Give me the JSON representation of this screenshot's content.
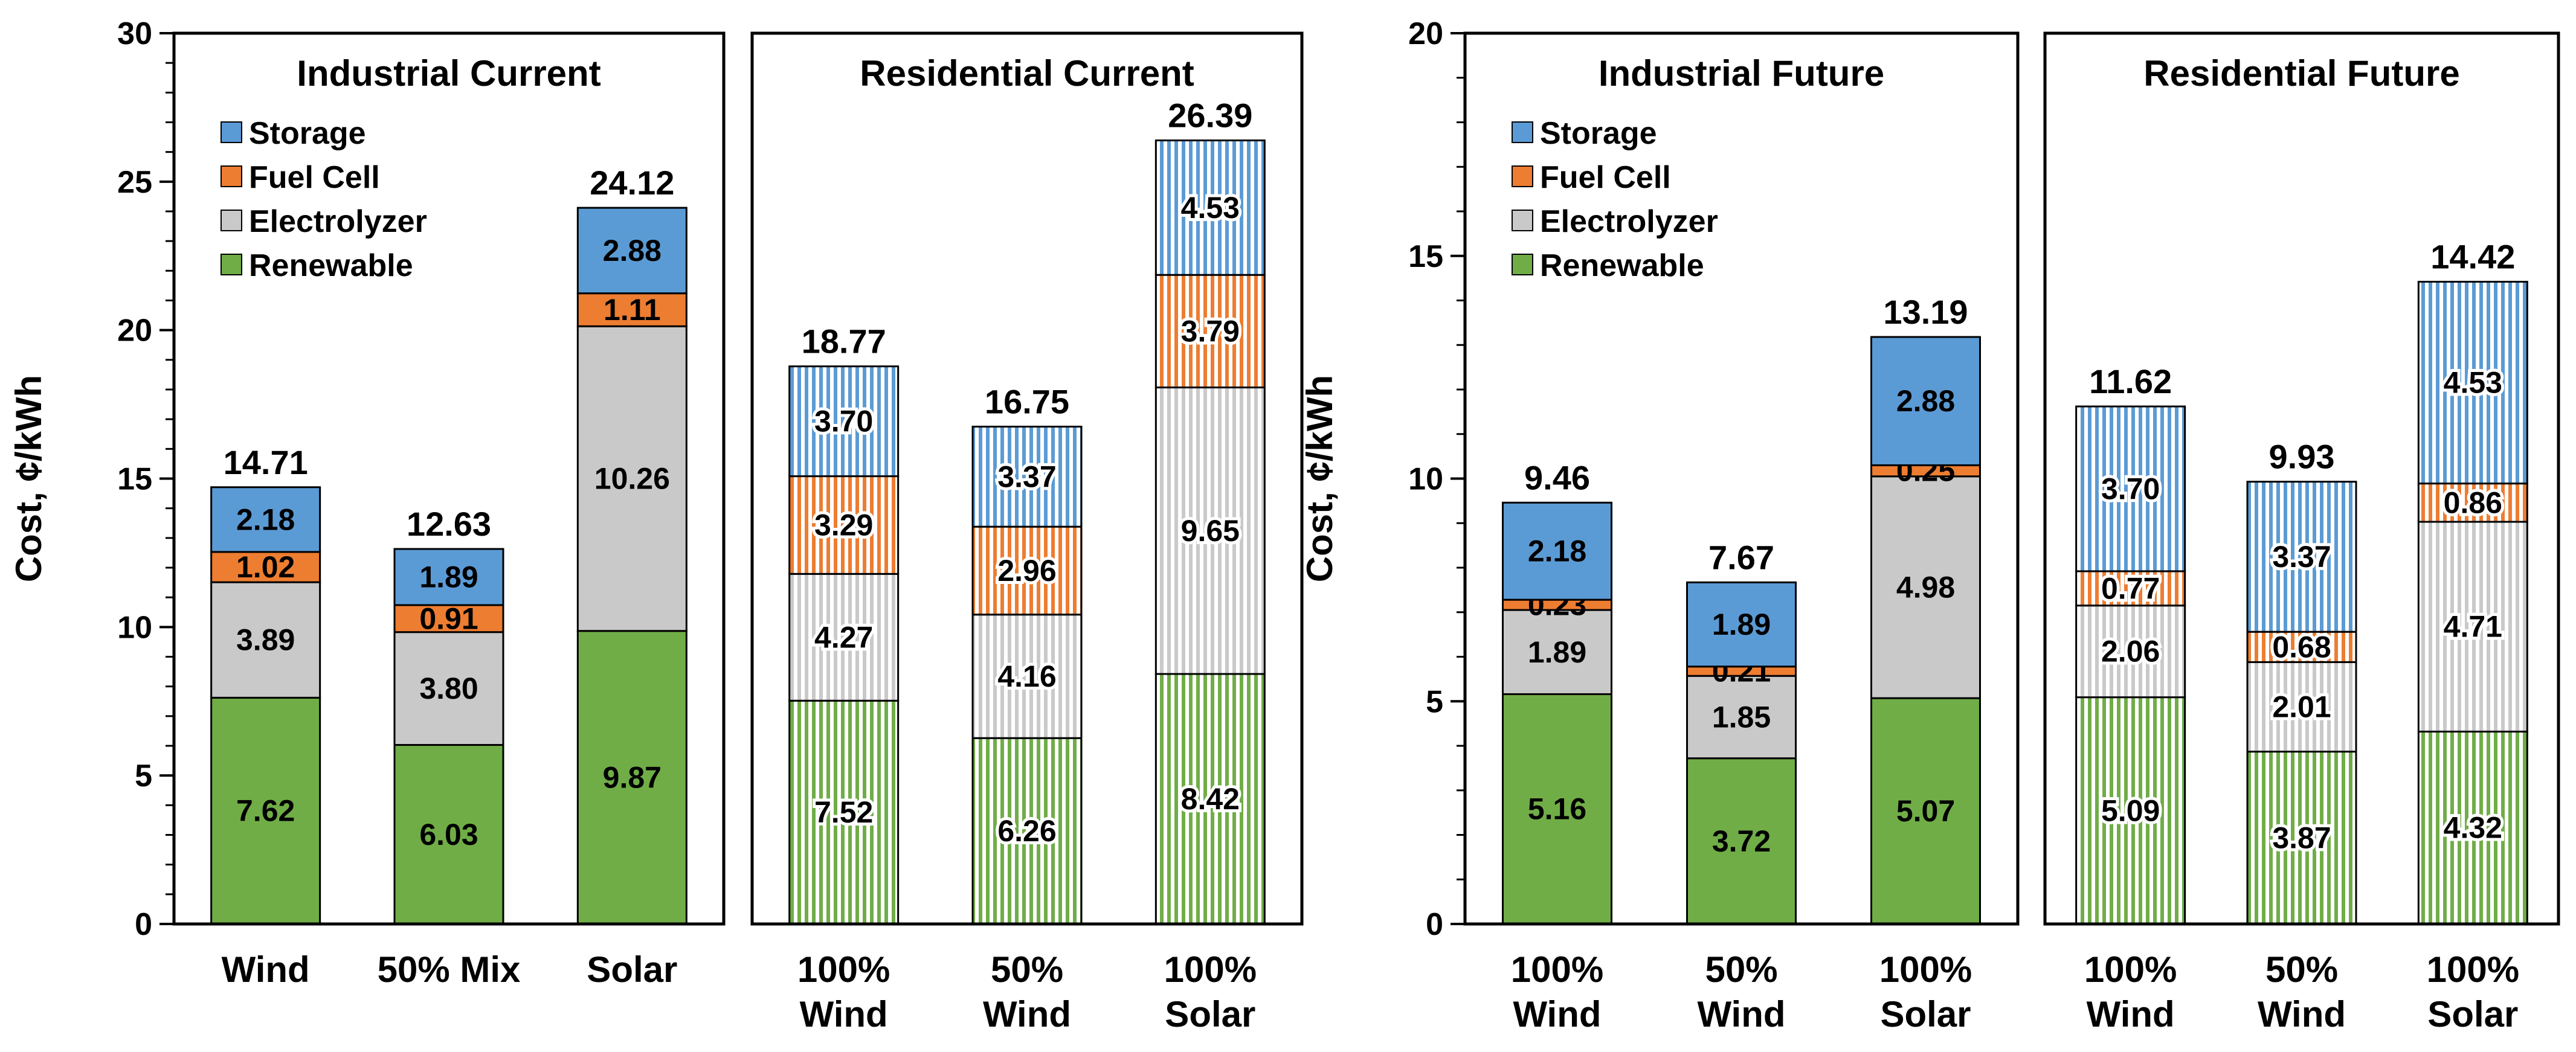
{
  "chart_data": [
    {
      "type": "bar",
      "stacked": true,
      "title": "Industrial Current",
      "ylabel": "Cost, ¢/kWh",
      "ylim": [
        0,
        30
      ],
      "yticks": [
        0,
        5,
        10,
        15,
        20,
        25,
        30
      ],
      "categories": [
        [
          "Wind"
        ],
        [
          "50% Mix"
        ],
        [
          "Solar"
        ]
      ],
      "series": [
        {
          "name": "Renewable",
          "values": [
            7.62,
            6.03,
            9.87
          ],
          "labels": [
            "7.62",
            "6.03",
            "9.87"
          ]
        },
        {
          "name": "Electrolyzer",
          "values": [
            3.89,
            3.8,
            10.26
          ],
          "labels": [
            "3.89",
            "3.80",
            "10.26"
          ]
        },
        {
          "name": "Fuel Cell",
          "values": [
            1.02,
            0.91,
            1.11
          ],
          "labels": [
            "1.02",
            "0.91",
            "1.11"
          ]
        },
        {
          "name": "Storage",
          "values": [
            2.18,
            1.89,
            2.88
          ],
          "labels": [
            "2.18",
            "1.89",
            "2.88"
          ]
        }
      ],
      "totals": [
        "14.71",
        "12.63",
        "24.12"
      ],
      "fill_style": "solid",
      "legend": true,
      "legend_position": "top-left"
    },
    {
      "type": "bar",
      "stacked": true,
      "title": "Residential Current",
      "ylim": [
        0,
        30
      ],
      "categories": [
        [
          "100%",
          "Wind"
        ],
        [
          "50%",
          "Wind"
        ],
        [
          "100%",
          "Solar"
        ]
      ],
      "series": [
        {
          "name": "Renewable",
          "values": [
            7.52,
            6.26,
            8.42
          ],
          "labels": [
            "7.52",
            "6.26",
            "8.42"
          ]
        },
        {
          "name": "Electrolyzer",
          "values": [
            4.27,
            4.16,
            9.65
          ],
          "labels": [
            "4.27",
            "4.16",
            "9.65"
          ]
        },
        {
          "name": "Fuel Cell",
          "values": [
            3.29,
            2.96,
            3.79
          ],
          "labels": [
            "3.29",
            "2.96",
            "3.79"
          ]
        },
        {
          "name": "Storage",
          "values": [
            3.7,
            3.37,
            4.53
          ],
          "labels": [
            "3.70",
            "3.37",
            "4.53"
          ]
        }
      ],
      "totals": [
        "18.77",
        "16.75",
        "26.39"
      ],
      "fill_style": "striped",
      "legend": false
    },
    {
      "type": "bar",
      "stacked": true,
      "title": "Industrial Future",
      "ylabel": "Cost, ¢/kWh",
      "ylim": [
        0,
        20
      ],
      "yticks": [
        0,
        5,
        10,
        15,
        20
      ],
      "categories": [
        [
          "100%",
          "Wind"
        ],
        [
          "50%",
          "Wind"
        ],
        [
          "100%",
          "Solar"
        ]
      ],
      "series": [
        {
          "name": "Renewable",
          "values": [
            5.16,
            3.72,
            5.07
          ],
          "labels": [
            "5.16",
            "3.72",
            "5.07"
          ]
        },
        {
          "name": "Electrolyzer",
          "values": [
            1.89,
            1.85,
            4.98
          ],
          "labels": [
            "1.89",
            "1.85",
            "4.98"
          ]
        },
        {
          "name": "Fuel Cell",
          "values": [
            0.23,
            0.21,
            0.25
          ],
          "labels": [
            "0.23",
            "0.21",
            "0.25"
          ]
        },
        {
          "name": "Storage",
          "values": [
            2.18,
            1.89,
            2.88
          ],
          "labels": [
            "2.18",
            "1.89",
            "2.88"
          ]
        }
      ],
      "totals": [
        "9.46",
        "7.67",
        "13.19"
      ],
      "fill_style": "solid",
      "legend": true,
      "legend_position": "top-left"
    },
    {
      "type": "bar",
      "stacked": true,
      "title": "Residential Future",
      "ylim": [
        0,
        20
      ],
      "categories": [
        [
          "100%",
          "Wind"
        ],
        [
          "50%",
          "Wind"
        ],
        [
          "100%",
          "Solar"
        ]
      ],
      "series": [
        {
          "name": "Renewable",
          "values": [
            5.09,
            3.87,
            4.32
          ],
          "labels": [
            "5.09",
            "3.87",
            "4.32"
          ]
        },
        {
          "name": "Electrolyzer",
          "values": [
            2.06,
            2.01,
            4.71
          ],
          "labels": [
            "2.06",
            "2.01",
            "4.71"
          ]
        },
        {
          "name": "Fuel Cell",
          "values": [
            0.77,
            0.68,
            0.86
          ],
          "labels": [
            "0.77",
            "0.68",
            "0.86"
          ]
        },
        {
          "name": "Storage",
          "values": [
            3.7,
            3.37,
            4.53
          ],
          "labels": [
            "3.70",
            "3.37",
            "4.53"
          ]
        }
      ],
      "totals": [
        "11.62",
        "9.93",
        "14.42"
      ],
      "fill_style": "striped",
      "legend": false
    }
  ],
  "legend": {
    "items": [
      "Storage",
      "Fuel Cell",
      "Electrolyzer",
      "Renewable"
    ]
  },
  "colors": {
    "Renewable": "#70ad47",
    "Electrolyzer": "#c9c9c9",
    "Fuel Cell": "#ed7d31",
    "Storage": "#5b9bd5",
    "outline": "#000000",
    "background": "#ffffff"
  }
}
